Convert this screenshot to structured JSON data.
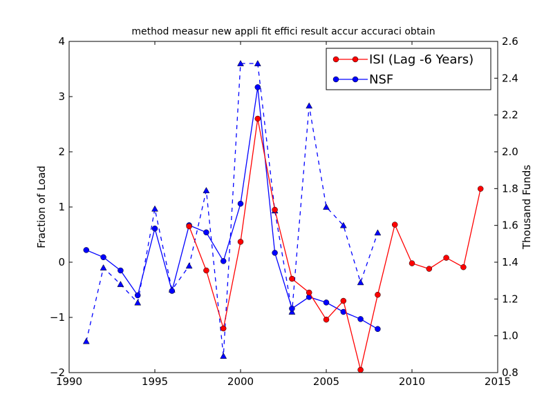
{
  "chart_data": {
    "type": "line",
    "title": "method measur new appli fit effici result accur accuraci obtain",
    "xlabel": "",
    "ylabel": "Fraction of Load",
    "y2label": "Thousand Funds",
    "xlim": [
      1990,
      2015
    ],
    "ylim": [
      -2,
      4
    ],
    "y2lim": [
      0.8,
      2.6
    ],
    "xticks": [
      "1990",
      "1995",
      "2000",
      "2005",
      "2010",
      "2015"
    ],
    "yticks": [
      "−2",
      "−1",
      "0",
      "1",
      "2",
      "3",
      "4"
    ],
    "y2ticks": [
      "0.8",
      "1.0",
      "1.2",
      "1.4",
      "1.6",
      "1.8",
      "2.0",
      "2.2",
      "2.4",
      "2.6"
    ],
    "legend_position": "top-right",
    "grid": false,
    "series": [
      {
        "name": "ISI (Lag -6 Years)",
        "axis": "left",
        "color": "#ff0000",
        "marker": "circle",
        "style": "solid",
        "legend": true,
        "x": [
          1997,
          1998,
          1999,
          2000,
          2001,
          2002,
          2003,
          2004,
          2005,
          2006,
          2007,
          2008,
          2009,
          2010,
          2011,
          2012,
          2013,
          2014
        ],
        "y": [
          0.65,
          -0.15,
          -1.2,
          0.37,
          2.6,
          0.95,
          -0.3,
          -0.55,
          -1.04,
          -0.7,
          -1.95,
          -0.59,
          0.68,
          -0.02,
          -0.12,
          0.08,
          -0.09,
          1.33
        ]
      },
      {
        "name": "NSF",
        "axis": "left",
        "color": "#0000ff",
        "marker": "circle",
        "style": "solid",
        "legend": true,
        "x": [
          1991,
          1992,
          1993,
          1994,
          1995,
          1996,
          1997,
          1998,
          1999,
          2000,
          2001,
          2002,
          2003,
          2004,
          2005,
          2006,
          2007,
          2008
        ],
        "y": [
          0.22,
          0.09,
          -0.15,
          -0.6,
          0.61,
          -0.52,
          0.67,
          0.54,
          0.02,
          1.06,
          3.17,
          0.17,
          -0.84,
          -0.63,
          -0.73,
          -0.9,
          -1.03,
          -1.21
        ]
      },
      {
        "name": "",
        "axis": "right",
        "color": "#0000ff",
        "marker": "triangle",
        "style": "dashed",
        "legend": false,
        "x": [
          1991,
          1992,
          1993,
          1994,
          1995,
          1996,
          1997,
          1998,
          1999,
          2000,
          2001,
          2002,
          2003,
          2004,
          2005,
          2006,
          2007,
          2008
        ],
        "y": [
          0.97,
          1.37,
          1.28,
          1.18,
          1.69,
          1.25,
          1.38,
          1.79,
          0.89,
          2.48,
          2.48,
          1.68,
          1.13,
          2.25,
          1.7,
          1.6,
          1.29,
          1.56
        ]
      }
    ]
  }
}
